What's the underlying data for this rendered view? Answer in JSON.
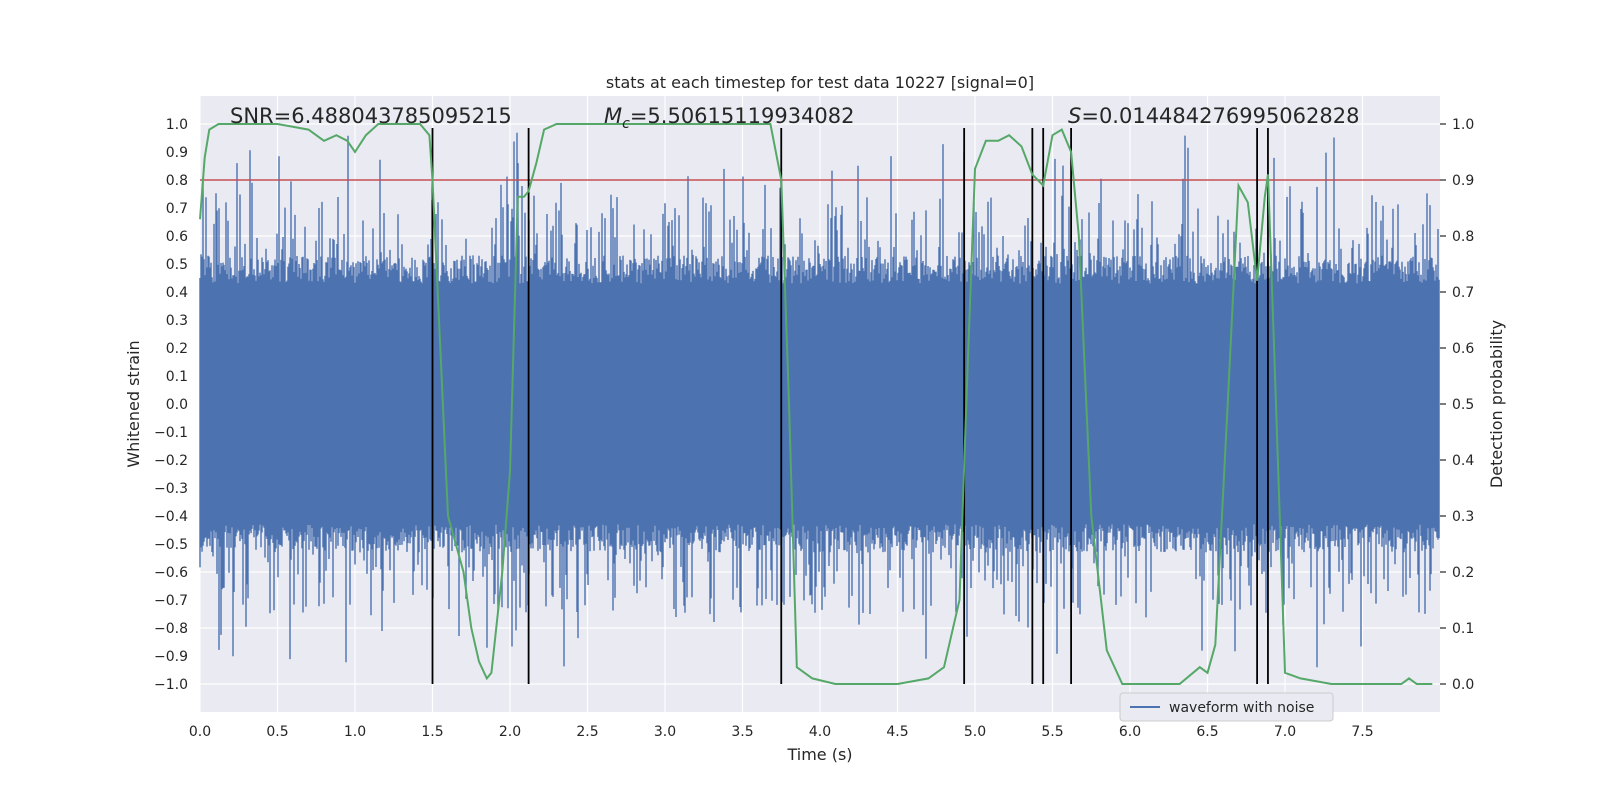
{
  "chart_data": {
    "type": "line",
    "title": "stats at each timestep for test data 10227 [signal=0]",
    "xlabel": "Time (s)",
    "ylabel": "Whitened strain",
    "y2label": "Detection probability",
    "xlim": [
      0.0,
      8.0
    ],
    "ylim": [
      -1.1,
      1.1
    ],
    "y2lim": [
      -0.05,
      1.05
    ],
    "x_ticks": [
      0.0,
      0.5,
      1.0,
      1.5,
      2.0,
      2.5,
      3.0,
      3.5,
      4.0,
      4.5,
      5.0,
      5.5,
      6.0,
      6.5,
      7.0,
      7.5
    ],
    "x_tick_labels": [
      "0.0",
      "0.5",
      "1.0",
      "1.5",
      "2.0",
      "2.5",
      "3.0",
      "3.5",
      "4.0",
      "4.5",
      "5.0",
      "5.5",
      "6.0",
      "6.5",
      "7.0",
      "7.5"
    ],
    "y_ticks": [
      1.0,
      0.9,
      0.8,
      0.7,
      0.6,
      0.5,
      0.4,
      0.3,
      0.2,
      0.1,
      0.0,
      -0.1,
      -0.2,
      -0.3,
      -0.4,
      -0.5,
      -0.6,
      -0.7,
      -0.8,
      -0.9,
      -1.0
    ],
    "y_tick_labels": [
      "1.0",
      "0.9",
      "0.8",
      "0.7",
      "0.6",
      "0.5",
      "0.4",
      "0.3",
      "0.2",
      "0.1",
      "0.0",
      "−0.1",
      "−0.2",
      "−0.3",
      "−0.4",
      "−0.5",
      "−0.6",
      "−0.7",
      "−0.8",
      "−0.9",
      "−1.0"
    ],
    "y2_ticks": [
      1.0,
      0.9,
      0.8,
      0.7,
      0.6,
      0.5,
      0.4,
      0.3,
      0.2,
      0.1,
      0.0
    ],
    "y2_tick_labels": [
      "1.0",
      "0.9",
      "0.8",
      "0.7",
      "0.6",
      "0.5",
      "0.4",
      "0.3",
      "0.2",
      "0.1",
      "0.0"
    ],
    "grid": true,
    "legend": {
      "position": "bottom-right",
      "entries": [
        "waveform with noise"
      ]
    },
    "annotations": {
      "snr": "SNR=6.488043785095215",
      "mc_symbol": "M",
      "mc_sub": "c",
      "mc_value": "=5.50615119934082",
      "s_symbol": "S",
      "s_value": "=0.014484276995062828"
    },
    "threshold_line": {
      "y2": 0.9,
      "color": "#c44e52"
    },
    "vertical_lines": [
      1.5,
      2.12,
      3.75,
      4.93,
      5.37,
      5.44,
      5.62,
      6.82,
      6.89
    ],
    "vertical_line_range": [
      -1.0,
      1.0
    ],
    "waveform": {
      "name": "waveform with noise",
      "color": "#4c72b0",
      "envelope_base": [
        -0.43,
        0.43
      ],
      "spike_extremes": [
        -0.95,
        0.97
      ],
      "noise_seed": 10227
    },
    "probability": {
      "color": "#55a868",
      "x": [
        0.0,
        0.03,
        0.06,
        0.12,
        0.2,
        0.3,
        0.5,
        0.7,
        0.8,
        0.88,
        0.95,
        1.0,
        1.07,
        1.15,
        1.25,
        1.35,
        1.42,
        1.48,
        1.5,
        1.55,
        1.6,
        1.65,
        1.7,
        1.75,
        1.8,
        1.85,
        1.88,
        1.95,
        2.0,
        2.05,
        2.09,
        2.12,
        2.17,
        2.22,
        2.3,
        2.5,
        2.75,
        3.0,
        3.25,
        3.5,
        3.6,
        3.68,
        3.75,
        3.8,
        3.85,
        3.95,
        4.1,
        4.3,
        4.5,
        4.7,
        4.8,
        4.9,
        4.95,
        5.0,
        5.07,
        5.15,
        5.22,
        5.3,
        5.37,
        5.44,
        5.5,
        5.56,
        5.62,
        5.67,
        5.75,
        5.85,
        5.95,
        6.1,
        6.25,
        6.32,
        6.45,
        6.5,
        6.55,
        6.63,
        6.7,
        6.76,
        6.82,
        6.87,
        6.89,
        6.93,
        7.0,
        7.1,
        7.3,
        7.5,
        7.75,
        7.8,
        7.85,
        7.9,
        7.95
      ],
      "y": [
        0.83,
        0.94,
        0.99,
        1.0,
        1.0,
        1.0,
        1.0,
        0.99,
        0.97,
        0.98,
        0.97,
        0.95,
        0.98,
        1.0,
        1.0,
        1.0,
        1.0,
        0.98,
        0.9,
        0.6,
        0.3,
        0.25,
        0.2,
        0.1,
        0.04,
        0.01,
        0.02,
        0.2,
        0.38,
        0.87,
        0.87,
        0.88,
        0.93,
        0.99,
        1.0,
        1.0,
        1.0,
        1.0,
        1.0,
        1.0,
        1.0,
        1.0,
        0.9,
        0.5,
        0.03,
        0.01,
        0.0,
        0.0,
        0.0,
        0.01,
        0.03,
        0.15,
        0.55,
        0.92,
        0.97,
        0.97,
        0.98,
        0.96,
        0.91,
        0.89,
        0.98,
        0.99,
        0.95,
        0.8,
        0.3,
        0.06,
        0.0,
        0.0,
        0.0,
        0.0,
        0.03,
        0.02,
        0.07,
        0.5,
        0.89,
        0.86,
        0.72,
        0.87,
        0.91,
        0.6,
        0.02,
        0.01,
        0.0,
        0.0,
        0.0,
        0.01,
        0.0,
        0.0,
        0.0
      ]
    }
  }
}
